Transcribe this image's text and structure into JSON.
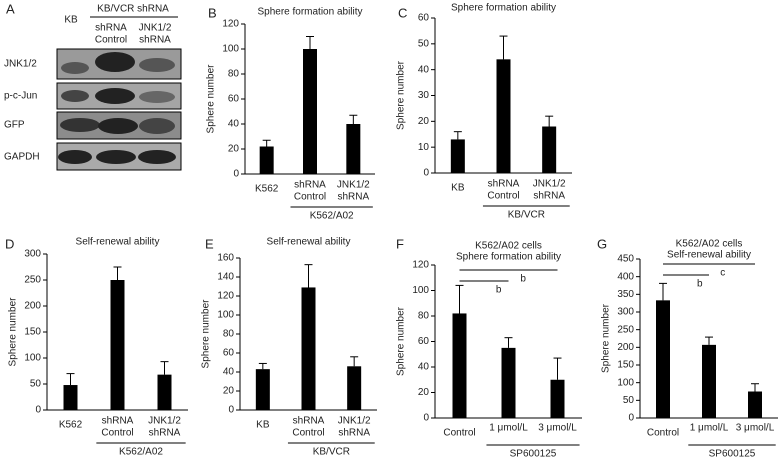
{
  "blot": {
    "panel": "A",
    "columns": [
      "KB",
      [
        "shRNA",
        "Control"
      ],
      [
        "JNK1/2",
        "shRNA"
      ]
    ],
    "group": "KB/VCR shRNA",
    "rows": [
      "JNK1/2",
      "p-c-Jun",
      "GFP",
      "GAPDH"
    ]
  },
  "chart_data": [
    {
      "type": "bar",
      "panel": "B",
      "title": "Sphere formation ability",
      "y_label": "Sphere number",
      "categories": [
        "K562",
        [
          "shRNA",
          "Control"
        ],
        [
          "JNK1/2",
          "shRNA"
        ]
      ],
      "group_label": "K562/A02",
      "values": [
        22,
        100,
        40
      ],
      "errors": [
        5,
        10,
        7
      ],
      "color": "#000000",
      "ylim": [
        0,
        120
      ],
      "yticks": [
        0,
        20,
        40,
        60,
        80,
        100,
        120
      ]
    },
    {
      "type": "bar",
      "panel": "C",
      "title": "Sphere formation ability",
      "y_label": "Sphere number",
      "categories": [
        "KB",
        [
          "shRNA",
          "Control"
        ],
        [
          "JNK1/2",
          "shRNA"
        ]
      ],
      "group_label": "KB/VCR",
      "values": [
        13,
        44,
        18
      ],
      "errors": [
        3,
        9,
        4
      ],
      "color": "#000000",
      "ylim": [
        0,
        60
      ],
      "yticks": [
        0,
        10,
        20,
        30,
        40,
        50,
        60
      ]
    },
    {
      "type": "bar",
      "panel": "D",
      "title": "Self-renewal ability",
      "y_label": "Sphere number",
      "categories": [
        "K562",
        [
          "shRNA",
          "Control"
        ],
        [
          "JNK1/2",
          "shRNA"
        ]
      ],
      "group_label": "K562/A02",
      "values": [
        48,
        250,
        68
      ],
      "errors": [
        22,
        25,
        25
      ],
      "color": "#000000",
      "ylim": [
        0,
        300
      ],
      "yticks": [
        0,
        50,
        100,
        150,
        200,
        250,
        300
      ]
    },
    {
      "type": "bar",
      "panel": "E",
      "title": "Self-renewal ability",
      "y_label": "Sphere number",
      "categories": [
        "KB",
        [
          "shRNA",
          "Control"
        ],
        [
          "JNK1/2",
          "shRNA"
        ]
      ],
      "group_label": "KB/VCR",
      "values": [
        43,
        129,
        46
      ],
      "errors": [
        6,
        24,
        10
      ],
      "color": "#000000",
      "ylim": [
        0,
        160
      ],
      "yticks": [
        0,
        20,
        40,
        60,
        80,
        100,
        120,
        140,
        160
      ]
    },
    {
      "type": "bar",
      "panel": "F",
      "title": "K562/A02 cells",
      "subtitle": "Sphere formation ability",
      "y_label": "Sphere number",
      "categories": [
        "Control",
        "1 μmol/L",
        "3 μmol/L"
      ],
      "group_label": "SP600125",
      "values": [
        82,
        55,
        30
      ],
      "errors": [
        22,
        8,
        17
      ],
      "color": "#000000",
      "ylim": [
        0,
        120
      ],
      "yticks": [
        0,
        20,
        40,
        60,
        80,
        100,
        120
      ],
      "annotations": [
        "b",
        "b"
      ]
    },
    {
      "type": "bar",
      "panel": "G",
      "title": "K562/A02 cells",
      "subtitle": "Self-renewal ability",
      "y_label": "Sphere number",
      "categories": [
        "Control",
        "1 μmol/L",
        "3 μmol/L"
      ],
      "group_label": "SP600125",
      "values": [
        333,
        207,
        75
      ],
      "errors": [
        48,
        22,
        22
      ],
      "color": "#000000",
      "ylim": [
        0,
        450
      ],
      "yticks": [
        0,
        50,
        100,
        150,
        200,
        250,
        300,
        350,
        400,
        450
      ],
      "annotations": [
        "b",
        "c"
      ]
    }
  ]
}
